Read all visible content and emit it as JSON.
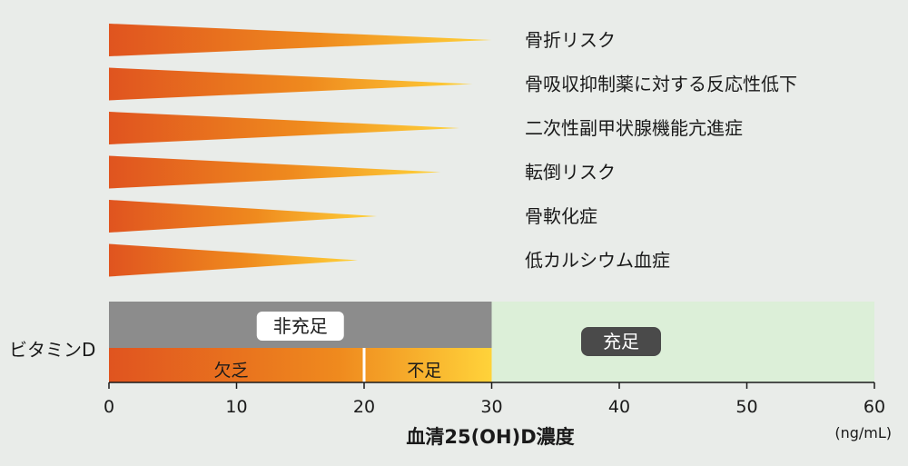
{
  "chart_data": {
    "type": "bar",
    "orientation": "horizontal",
    "bar_shape": "tapered-wedge",
    "categories": [
      "骨折リスク",
      "骨吸収抑制薬に対する反応性低下",
      "二次性副甲状腺機能亢進症",
      "転倒リスク",
      "骨軟化症",
      "低カルシウム血症"
    ],
    "values": [
      30,
      28.5,
      27.5,
      26,
      21,
      19.5
    ],
    "xlabel": "血清25(OH)D濃度",
    "xunit": "(ng/mL)",
    "xlim": [
      0,
      60
    ],
    "xticks": [
      0,
      10,
      20,
      30,
      40,
      50,
      60
    ],
    "vitamin_d": {
      "row_label": "ビタミンD",
      "groups": [
        {
          "label": "非充足",
          "from": 0,
          "to": 30
        },
        {
          "label": "充足",
          "from": 30,
          "to": 60
        }
      ],
      "levels": [
        {
          "label": "欠乏",
          "from": 0,
          "to": 20
        },
        {
          "label": "不足",
          "from": 20,
          "to": 30
        }
      ]
    },
    "colors": {
      "wedge_start": "#e0541f",
      "wedge_mid": "#ef8a1e",
      "wedge_end": "#ffd33a",
      "insufficient_band": "#8c8c8c",
      "sufficient_band": "#dcefd8",
      "badge_dark": "#4a4a4a"
    },
    "grid": false
  }
}
